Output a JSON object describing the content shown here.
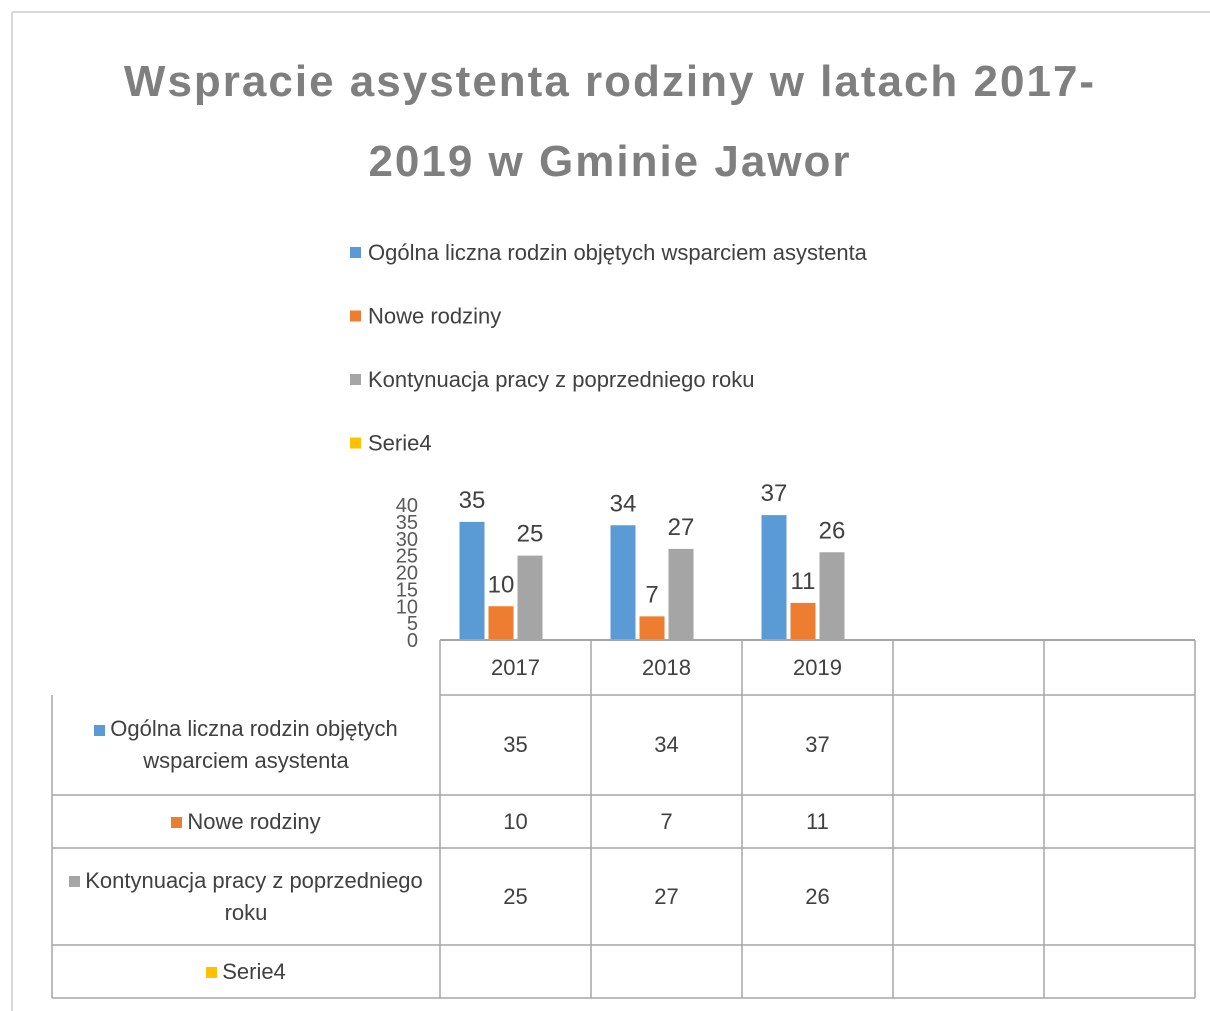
{
  "chart_data": {
    "type": "bar",
    "title": "Wspracie asystenta rodziny w latach 2017-2019 w Gminie Jawor",
    "categories": [
      "2017",
      "2018",
      "2019",
      null,
      null
    ],
    "series": [
      {
        "name": "Ogólna liczna rodzin objętych wsparciem asystenta",
        "color": "#5b9bd5",
        "values": [
          35,
          34,
          37,
          null,
          null
        ]
      },
      {
        "name": "Nowe rodziny",
        "color": "#ed7d31",
        "values": [
          10,
          7,
          11,
          null,
          null
        ]
      },
      {
        "name": "Kontynuacja pracy z poprzedniego roku",
        "color": "#a5a5a5",
        "values": [
          25,
          27,
          26,
          null,
          null
        ]
      },
      {
        "name": "Serie4",
        "color": "#ffc000",
        "values": [
          null,
          null,
          null,
          null,
          null
        ]
      }
    ],
    "ylim": [
      0,
      40
    ],
    "yticks": [
      0,
      5,
      10,
      15,
      20,
      25,
      30,
      35,
      40
    ],
    "legend": "top",
    "data_table": true
  }
}
